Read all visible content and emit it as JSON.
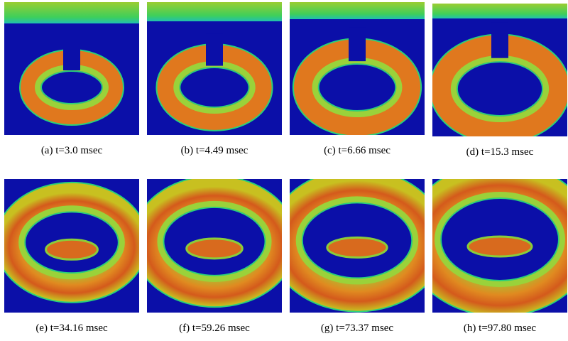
{
  "figure": {
    "panels": [
      {
        "caption": "(a) t=3.0 msec"
      },
      {
        "caption": "(b) t=4.49 msec"
      },
      {
        "caption": "(c) t=6.66 msec"
      },
      {
        "caption": "(d) t=15.3 msec"
      },
      {
        "caption": "(e) t=34.16 msec"
      },
      {
        "caption": "(f) t=59.26 msec"
      },
      {
        "caption": "(g) t=73.37 msec"
      },
      {
        "caption": "(h) t=97.80 msec"
      }
    ]
  }
}
